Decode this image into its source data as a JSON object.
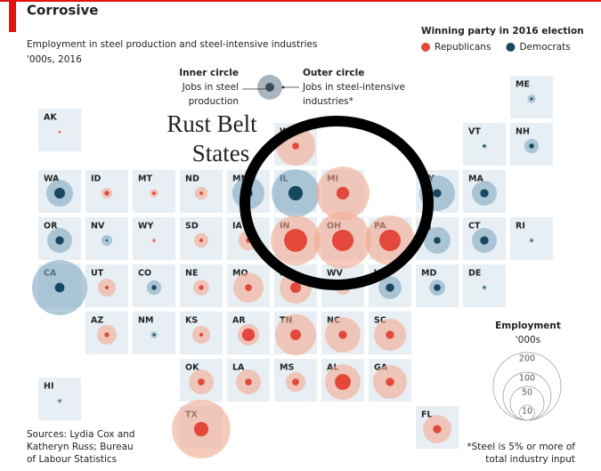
{
  "map": {
    "title": "Corrosive",
    "subtitle": "Employment in steel production and steel-intensive industries",
    "units": "'000s, 2016",
    "key": {
      "inner": {
        "heading": "Inner circle",
        "lines": [
          "Jobs in steel",
          "production"
        ]
      },
      "outer": {
        "heading": "Outer circle",
        "lines": [
          "Jobs in steel-intensive",
          "industries*"
        ]
      }
    },
    "party_legend": {
      "title": "Winning party in 2016 election",
      "parties": [
        {
          "name": "Republicans",
          "color": "#e3483a",
          "halo": "#f2a890"
        },
        {
          "name": "Democrats",
          "color": "#17485f",
          "halo": "#7fa6bf"
        }
      ]
    },
    "size_legend": {
      "title": "Employment",
      "units": "'000s",
      "values": [
        200,
        100,
        50,
        10
      ]
    },
    "annotation": [
      "Rust Belt",
      "States"
    ],
    "sources": [
      "Sources: Lydia Cox and",
      "Katheryn Russ; Bureau",
      "of Labour Statistics"
    ],
    "footnote": [
      "*Steel is 5% or more of",
      "total industry input"
    ],
    "states": [
      {
        "abbr": "ME",
        "party": "Democrats",
        "outer": 3,
        "inner": 0.3
      },
      {
        "abbr": "AK",
        "party": "Republicans",
        "outer": 0.5,
        "inner": 0.1
      },
      {
        "abbr": "WI",
        "party": "Republicans",
        "outer": 67,
        "inner": 2
      },
      {
        "abbr": "VT",
        "party": "Democrats",
        "outer": 1,
        "inner": 0.3
      },
      {
        "abbr": "NH",
        "party": "Democrats",
        "outer": 9,
        "inner": 1
      },
      {
        "abbr": "WA",
        "party": "Democrats",
        "outer": 31,
        "inner": 5
      },
      {
        "abbr": "ID",
        "party": "Republicans",
        "outer": 5,
        "inner": 1
      },
      {
        "abbr": "MT",
        "party": "Republicans",
        "outer": 3,
        "inner": 0.5
      },
      {
        "abbr": "ND",
        "party": "Republicans",
        "outer": 7,
        "inner": 0.5
      },
      {
        "abbr": "MN",
        "party": "Democrats",
        "outer": 45,
        "inner": 3
      },
      {
        "abbr": "IL",
        "party": "Democrats",
        "outer": 100,
        "inner": 9
      },
      {
        "abbr": "MI",
        "party": "Republicans",
        "outer": 124,
        "inner": 7
      },
      {
        "abbr": "NY",
        "party": "Democrats",
        "outer": 55,
        "inner": 3
      },
      {
        "abbr": "MA",
        "party": "Democrats",
        "outer": 27,
        "inner": 3
      },
      {
        "abbr": "OR",
        "party": "Democrats",
        "outer": 27,
        "inner": 3
      },
      {
        "abbr": "NV",
        "party": "Democrats",
        "outer": 5,
        "inner": 0.2
      },
      {
        "abbr": "WY",
        "party": "Republicans",
        "outer": 1,
        "inner": 0.2
      },
      {
        "abbr": "SD",
        "party": "Republicans",
        "outer": 9,
        "inner": 0.6
      },
      {
        "abbr": "IA",
        "party": "Republicans",
        "outer": 17,
        "inner": 1
      },
      {
        "abbr": "IN",
        "party": "Republicans",
        "outer": 108,
        "inner": 23
      },
      {
        "abbr": "OH",
        "party": "Republicans",
        "outer": 140,
        "inner": 20
      },
      {
        "abbr": "PA",
        "party": "Republicans",
        "outer": 108,
        "inner": 20
      },
      {
        "abbr": "NJ",
        "party": "Democrats",
        "outer": 31,
        "inner": 2
      },
      {
        "abbr": "CT",
        "party": "Democrats",
        "outer": 27,
        "inner": 3
      },
      {
        "abbr": "RI",
        "party": "Democrats",
        "outer": 1,
        "inner": 0.2
      },
      {
        "abbr": "CA",
        "party": "Democrats",
        "outer": 133,
        "inner": 4
      },
      {
        "abbr": "UT",
        "party": "Republicans",
        "outer": 14,
        "inner": 0.6
      },
      {
        "abbr": "CO",
        "party": "Democrats",
        "outer": 9,
        "inner": 1
      },
      {
        "abbr": "NE",
        "party": "Republicans",
        "outer": 11,
        "inner": 1
      },
      {
        "abbr": "MO",
        "party": "Republicans",
        "outer": 40,
        "inner": 2
      },
      {
        "abbr": "KY",
        "party": "Republicans",
        "outer": 45,
        "inner": 5
      },
      {
        "abbr": "WV",
        "party": "Republicans",
        "outer": 9,
        "inner": 1
      },
      {
        "abbr": "VA",
        "party": "Democrats",
        "outer": 23,
        "inner": 3
      },
      {
        "abbr": "MD",
        "party": "Democrats",
        "outer": 11,
        "inner": 2
      },
      {
        "abbr": "DE",
        "party": "Democrats",
        "outer": 1,
        "inner": 0.2
      },
      {
        "abbr": "AZ",
        "party": "Republicans",
        "outer": 17,
        "inner": 1
      },
      {
        "abbr": "NM",
        "party": "Democrats",
        "outer": 2,
        "inner": 0.3
      },
      {
        "abbr": "KS",
        "party": "Republicans",
        "outer": 14,
        "inner": 0.6
      },
      {
        "abbr": "AR",
        "party": "Republicans",
        "outer": 20,
        "inner": 7
      },
      {
        "abbr": "TN",
        "party": "Republicans",
        "outer": 73,
        "inner": 5
      },
      {
        "abbr": "NC",
        "party": "Republicans",
        "outer": 55,
        "inner": 3
      },
      {
        "abbr": "SC",
        "party": "Republicans",
        "outer": 45,
        "inner": 3
      },
      {
        "abbr": "HI",
        "party": "Democrats",
        "outer": 1,
        "inner": 0.1
      },
      {
        "abbr": "OK",
        "party": "Republicans",
        "outer": 27,
        "inner": 2
      },
      {
        "abbr": "LA",
        "party": "Republicans",
        "outer": 27,
        "inner": 2
      },
      {
        "abbr": "MS",
        "party": "Republicans",
        "outer": 17,
        "inner": 2
      },
      {
        "abbr": "AL",
        "party": "Republicans",
        "outer": 55,
        "inner": 11
      },
      {
        "abbr": "GA",
        "party": "Republicans",
        "outer": 50,
        "inner": 3
      },
      {
        "abbr": "TX",
        "party": "Republicans",
        "outer": 150,
        "inner": 9
      },
      {
        "abbr": "FL",
        "party": "Republicans",
        "outer": 35,
        "inner": 3
      }
    ]
  }
}
